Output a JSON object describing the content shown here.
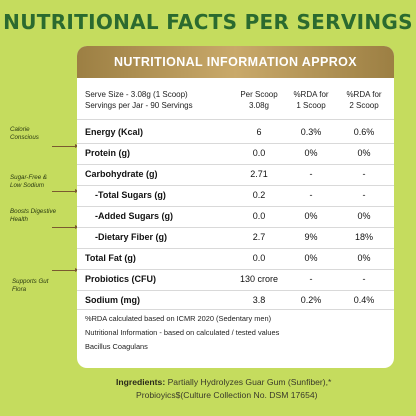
{
  "title": "NUTRITIONAL FACTS PER SERVINGS",
  "card": {
    "header": "NUTRITIONAL INFORMATION APPROX",
    "serve_size": "Serve Size - 3.08g (1 Scoop)",
    "servings_per_jar": "Servings per Jar - 90 Servings",
    "col_per_scoop": [
      "Per Scoop",
      "3.08g"
    ],
    "col_rda1": [
      "%RDA for",
      "1 Scoop"
    ],
    "col_rda2": [
      "%RDA for",
      "2 Scoop"
    ],
    "rows": [
      {
        "label": "Energy (Kcal)",
        "per_scoop": "6",
        "rda1": "0.3%",
        "rda2": "0.6%"
      },
      {
        "label": "Protein (g)",
        "per_scoop": "0.0",
        "rda1": "0%",
        "rda2": "0%"
      },
      {
        "label": "Carbohydrate (g)",
        "per_scoop": "2.71",
        "rda1": "-",
        "rda2": "-"
      },
      {
        "label": "-Total Sugars (g)",
        "per_scoop": "0.2",
        "rda1": "-",
        "rda2": "-"
      },
      {
        "label": "-Added Sugars (g)",
        "per_scoop": "0.0",
        "rda1": "0%",
        "rda2": "0%"
      },
      {
        "label": "-Dietary Fiber (g)",
        "per_scoop": "2.7",
        "rda1": "9%",
        "rda2": "18%"
      },
      {
        "label": "Total Fat (g)",
        "per_scoop": "0.0",
        "rda1": "0%",
        "rda2": "0%"
      },
      {
        "label": "Probiotics (CFU)",
        "per_scoop": "130 crore",
        "rda1": "-",
        "rda2": "-"
      },
      {
        "label": "Sodium (mg)",
        "per_scoop": "3.8",
        "rda1": "0.2%",
        "rda2": "0.4%"
      }
    ],
    "notes": [
      "%RDA calculated based on ICMR 2020 (Sedentary men)",
      "Nutritional Information - based on calculated / tested values",
      "Bacillus Coagulans"
    ]
  },
  "side_notes": {
    "calorie": [
      "Calorie",
      "Conscious"
    ],
    "sugar": [
      "Sugar-Free &",
      "Low Sodium"
    ],
    "digestive": [
      "Boosts Digestive",
      "Health"
    ],
    "gut": [
      "Supports Gut",
      "Flora"
    ]
  },
  "ingredients": {
    "label": "Ingredients:",
    "line1": "Partially Hydrolyzes Guar Gum (Sunfiber),*",
    "line2": "Probioyics$(Culture Collection No. DSM 17654)"
  }
}
